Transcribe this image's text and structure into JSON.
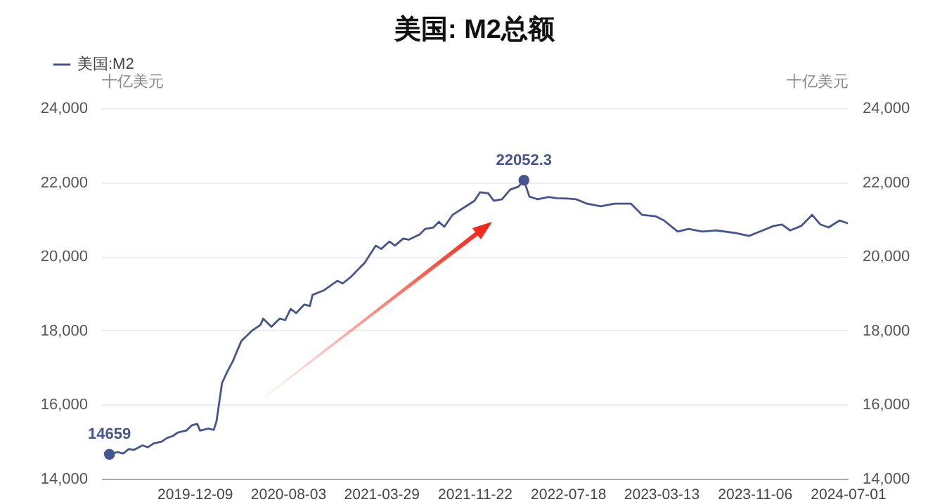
{
  "chart_data": {
    "type": "line",
    "title": "美国: M2总额",
    "ylabel": "十亿美元",
    "y2label": "十亿美元",
    "x": [
      "2019-04-22",
      "2019-05-06",
      "2019-05-27",
      "2019-06-10",
      "2019-06-24",
      "2019-07-08",
      "2019-07-29",
      "2019-08-12",
      "2019-08-26",
      "2019-09-16",
      "2019-09-30",
      "2019-10-14",
      "2019-10-28",
      "2019-11-18",
      "2019-12-02",
      "2019-12-16",
      "2019-12-23",
      "2020-01-13",
      "2020-01-27",
      "2020-02-03",
      "2020-02-17",
      "2020-03-02",
      "2020-03-16",
      "2020-04-06",
      "2020-05-04",
      "2020-05-25",
      "2020-06-01",
      "2020-06-22",
      "2020-07-13",
      "2020-07-27",
      "2020-08-10",
      "2020-08-24",
      "2020-09-14",
      "2020-09-28",
      "2020-10-05",
      "2020-11-02",
      "2020-12-07",
      "2020-12-21",
      "2021-01-11",
      "2021-02-15",
      "2021-03-15",
      "2021-03-29",
      "2021-04-19",
      "2021-05-03",
      "2021-05-24",
      "2021-06-07",
      "2021-07-05",
      "2021-07-19",
      "2021-08-09",
      "2021-08-23",
      "2021-09-06",
      "2021-09-27",
      "2021-10-25",
      "2021-11-22",
      "2021-12-06",
      "2021-12-27",
      "2022-01-10",
      "2022-01-31",
      "2022-02-21",
      "2022-03-14",
      "2022-03-28",
      "2022-04-11",
      "2022-05-02",
      "2022-05-30",
      "2022-06-20",
      "2022-07-18",
      "2022-08-08",
      "2022-09-05",
      "2022-10-10",
      "2022-11-14",
      "2022-12-26",
      "2023-01-23",
      "2023-02-27",
      "2023-03-20",
      "2023-04-24",
      "2023-05-22",
      "2023-06-26",
      "2023-07-31",
      "2023-09-18",
      "2023-10-23",
      "2023-11-20",
      "2023-12-25",
      "2024-01-15",
      "2024-02-05",
      "2024-03-04",
      "2024-04-01",
      "2024-04-22",
      "2024-05-13",
      "2024-06-10",
      "2024-07-01"
    ],
    "series": [
      {
        "name": "美国:M2",
        "color": "#46558f",
        "values": [
          14700,
          14659,
          14720,
          14680,
          14800,
          14780,
          14900,
          14850,
          14950,
          15000,
          15100,
          15150,
          15250,
          15300,
          15440,
          15480,
          15300,
          15350,
          15320,
          15550,
          16580,
          16900,
          17180,
          17710,
          18000,
          18150,
          18320,
          18100,
          18320,
          18280,
          18580,
          18470,
          18700,
          18660,
          18960,
          19080,
          19340,
          19270,
          19450,
          19830,
          20290,
          20200,
          20400,
          20290,
          20480,
          20450,
          20590,
          20740,
          20780,
          20930,
          20800,
          21120,
          21310,
          21500,
          21730,
          21700,
          21500,
          21540,
          21800,
          21880,
          22052.3,
          21610,
          21540,
          21600,
          21570,
          21560,
          21540,
          21420,
          21350,
          21420,
          21420,
          21120,
          21080,
          20970,
          20670,
          20740,
          20670,
          20700,
          20630,
          20550,
          20670,
          20820,
          20860,
          20700,
          20820,
          21120,
          20860,
          20780,
          20970,
          20890
        ]
      }
    ],
    "annotations": [
      {
        "text": "14659",
        "x": "2019-05-06",
        "y": 14659
      },
      {
        "text": "22052.3",
        "x": "2022-03-28",
        "y": 22052.3
      }
    ],
    "xlim": [
      "2019-04-15",
      "2024-07-01"
    ],
    "xticks": [
      "2019-12-09",
      "2020-08-03",
      "2021-03-29",
      "2021-11-22",
      "2022-07-18",
      "2023-03-13",
      "2023-11-06",
      "2024-07-01"
    ],
    "ylim": [
      14000,
      24000
    ],
    "yticks": [
      {
        "value": 14000,
        "label": "14,000"
      },
      {
        "value": 16000,
        "label": "16,000"
      },
      {
        "value": 18000,
        "label": "18,000"
      },
      {
        "value": 20000,
        "label": "20,000"
      },
      {
        "value": 22000,
        "label": "22,000"
      },
      {
        "value": 24000,
        "label": "24,000"
      }
    ],
    "y2lim": [
      14000,
      24000
    ],
    "y2ticks": [
      {
        "value": 14000,
        "label": "14,000"
      },
      {
        "value": 16000,
        "label": "16,000"
      },
      {
        "value": 18000,
        "label": "18,000"
      },
      {
        "value": 20000,
        "label": "20,000"
      },
      {
        "value": 22000,
        "label": "22,000"
      },
      {
        "value": 24000,
        "label": "24,000"
      }
    ],
    "grid": "y",
    "legend": "top left",
    "line_style": "solid"
  }
}
